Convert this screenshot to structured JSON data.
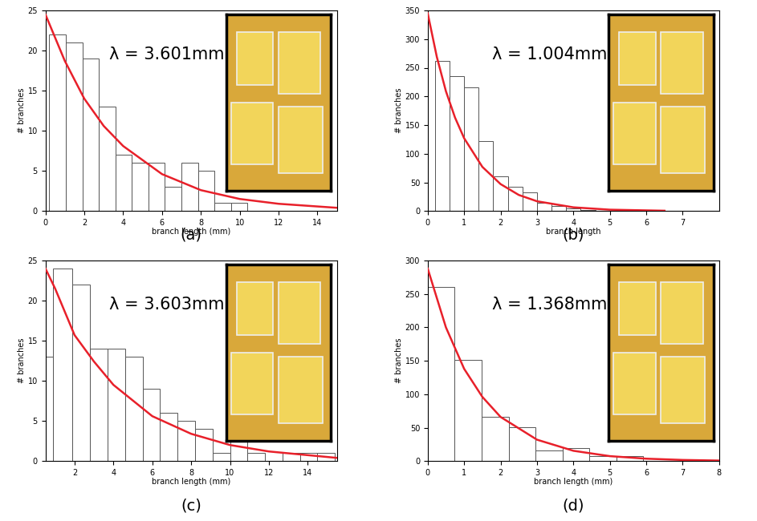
{
  "chart_data": [
    {
      "type": "histogram",
      "label": "(a)",
      "annotation": "λ = 3.601mm",
      "x_label": "branch length (mm)",
      "y_label": "# branches",
      "bins": [
        0.2,
        1.05,
        1.9,
        2.75,
        3.6,
        4.45,
        5.3,
        6.15,
        7.0,
        7.85,
        8.7,
        9.55,
        10.4
      ],
      "counts": [
        22,
        21,
        19,
        13,
        7,
        6,
        6,
        3,
        6,
        5,
        1,
        1
      ],
      "color": "#ffffff",
      "curve": {
        "x": [
          0,
          1,
          2,
          3,
          4,
          6,
          8,
          10,
          12,
          15
        ],
        "values": [
          24.5,
          18.7,
          14.0,
          10.6,
          8.1,
          4.6,
          2.6,
          1.5,
          0.9,
          0.4
        ],
        "color": "#e8202a"
      },
      "xlim": [
        0,
        15
      ],
      "ylim": [
        0,
        25
      ],
      "xticks": [
        0,
        2,
        4,
        6,
        8,
        10,
        12,
        14
      ],
      "yticks": [
        0,
        5,
        10,
        15,
        20,
        25
      ]
    },
    {
      "type": "histogram",
      "label": "(b)",
      "annotation": "λ = 1.004mm",
      "x_label": "branch length",
      "y_label": "# branches",
      "bins": [
        0.2,
        0.6,
        1.0,
        1.4,
        1.8,
        2.2,
        2.6,
        3.0,
        3.4,
        3.8,
        4.2,
        4.6,
        5.0
      ],
      "counts": [
        262,
        236,
        216,
        122,
        60,
        42,
        33,
        15,
        9,
        5,
        2,
        1
      ],
      "color": "#ffffff",
      "curve": {
        "x": [
          0,
          0.25,
          0.5,
          0.75,
          1,
          1.5,
          2,
          2.5,
          3,
          4,
          5,
          6.5
        ],
        "values": [
          345,
          269,
          209,
          163,
          127,
          77,
          47,
          28,
          17,
          6.4,
          2.3,
          0.5
        ],
        "color": "#e8202a"
      },
      "xlim": [
        0,
        8
      ],
      "ylim": [
        0,
        350
      ],
      "xticks": [
        0,
        1,
        2,
        3,
        4,
        5,
        6,
        7
      ],
      "yticks": [
        0,
        50,
        100,
        150,
        200,
        250,
        300,
        350
      ]
    },
    {
      "type": "histogram",
      "label": "(c)",
      "annotation": "λ = 3.603mm",
      "x_label": "branch length (mm)",
      "y_label": "# branches",
      "bins": [
        0.5,
        0.9,
        1.9,
        2.8,
        3.7,
        4.6,
        5.5,
        6.4,
        7.3,
        8.2,
        9.1,
        10.0,
        10.9,
        11.8,
        12.7,
        13.6,
        14.5,
        15.4
      ],
      "counts": [
        13,
        24,
        22,
        14,
        14,
        13,
        9,
        6,
        5,
        4,
        1,
        3,
        1,
        0,
        1,
        1,
        1
      ],
      "color": "#ffffff",
      "curve": {
        "x": [
          0.5,
          1,
          2,
          3,
          4,
          6,
          8,
          10,
          12,
          15.5
        ],
        "values": [
          24,
          21.5,
          15.7,
          12.4,
          9.5,
          5.6,
          3.4,
          2.0,
          1.2,
          0.4
        ],
        "color": "#e8202a"
      },
      "xlim": [
        0.5,
        15.5
      ],
      "ylim": [
        0,
        25
      ],
      "xticks": [
        2,
        4,
        6,
        8,
        10,
        12,
        14
      ],
      "yticks": [
        0,
        5,
        10,
        15,
        20,
        25
      ]
    },
    {
      "type": "histogram",
      "label": "(d)",
      "annotation": "λ = 1.368mm",
      "x_label": "branch length (mm)",
      "y_label": "# branches",
      "bins": [
        0,
        0.74,
        1.48,
        2.22,
        2.96,
        3.7,
        4.44,
        5.18,
        5.92
      ],
      "counts": [
        261,
        151,
        66,
        51,
        16,
        19,
        8,
        8
      ],
      "color": "#ffffff",
      "curve": {
        "x": [
          0,
          0.5,
          1,
          1.5,
          2,
          3,
          4,
          5,
          6,
          7,
          8
        ],
        "values": [
          288,
          200,
          138,
          96,
          66,
          32,
          15.4,
          7.4,
          3.6,
          1.7,
          0.8
        ],
        "color": "#e8202a"
      },
      "xlim": [
        0,
        8
      ],
      "ylim": [
        0,
        300
      ],
      "xticks": [
        0,
        1,
        2,
        3,
        4,
        5,
        6,
        7,
        8
      ],
      "yticks": [
        0,
        50,
        100,
        150,
        200,
        250,
        300
      ]
    }
  ]
}
